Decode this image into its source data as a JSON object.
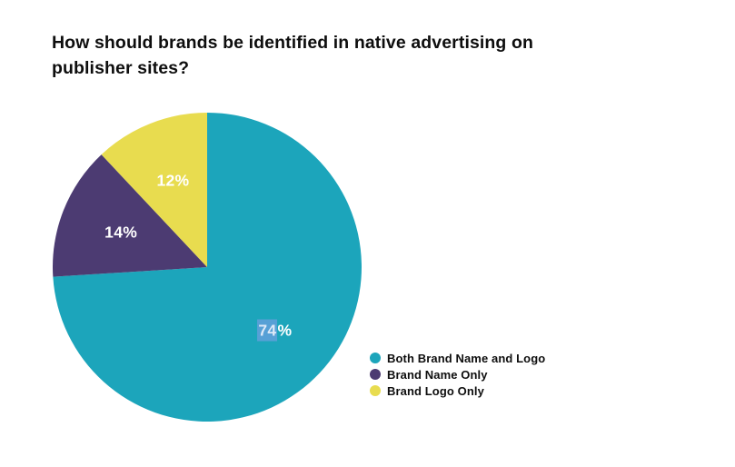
{
  "title": "How should brands be identified in native advertising on publisher sites?",
  "colors": {
    "background": "#FFFFFF",
    "title_text": "#0E0E0E",
    "slice_label_text": "#FFFFFF",
    "selection_highlight": "#57A0D6",
    "selected_text": "#DDE9F8"
  },
  "chart_data": {
    "type": "pie",
    "title": "How should brands be identified in native advertising on publisher sites?",
    "categories": [
      "Both Brand Name and Logo",
      "Brand Name Only",
      "Brand Logo Only"
    ],
    "values": [
      74,
      14,
      12
    ],
    "start_angle_deg": 0,
    "direction": "clockwise",
    "legend_position": "right",
    "slices": [
      {
        "label": "Both Brand Name and Logo",
        "value": 74,
        "display": "74%",
        "color": "#1CA5BB",
        "highlighted": true
      },
      {
        "label": "Brand Name Only",
        "value": 14,
        "display": "14%",
        "color": "#4C3B72",
        "highlighted": false
      },
      {
        "label": "Brand Logo Only",
        "value": 12,
        "display": "12%",
        "color": "#E8DC4F",
        "highlighted": false
      }
    ]
  }
}
